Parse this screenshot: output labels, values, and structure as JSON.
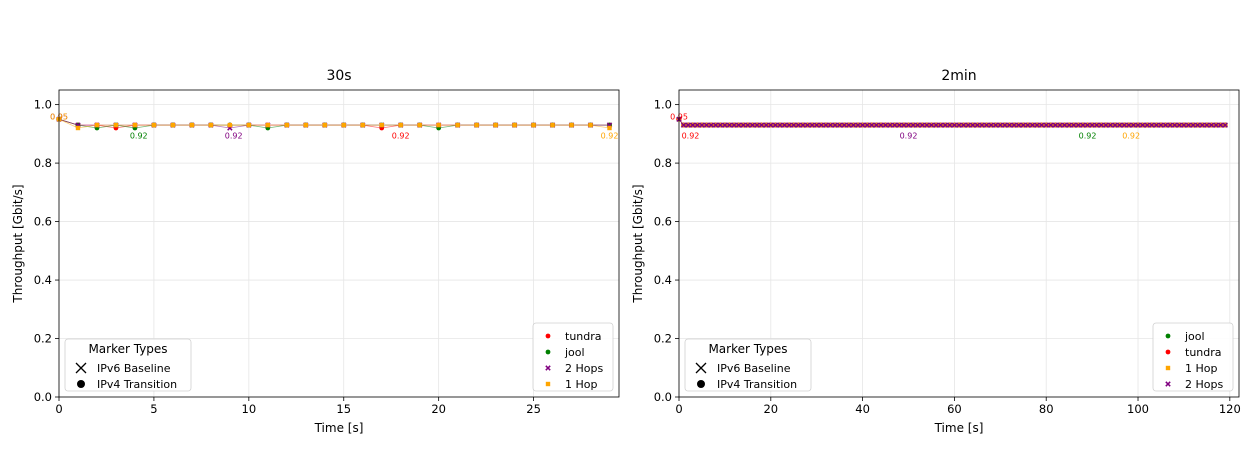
{
  "colors": {
    "tundra": "#ff0000",
    "jool": "#008000",
    "2 Hops": "#800080",
    "1 Hop": "#ffa500",
    "grid": "#e6e6e6"
  },
  "marker_legend": {
    "title": "Marker Types",
    "items": [
      {
        "label": "IPv6 Baseline",
        "marker": "x"
      },
      {
        "label": "IPv4 Transition",
        "marker": "circle"
      }
    ]
  },
  "chart_data": [
    {
      "type": "scatter",
      "title": "30s",
      "xlabel": "Time [s]",
      "ylabel": "Throughput [Gbit/s]",
      "xlim": [
        0,
        29.5
      ],
      "ylim": [
        0,
        1.05
      ],
      "xticks": [
        0,
        5,
        10,
        15,
        20,
        25
      ],
      "yticks": [
        0.0,
        0.2,
        0.4,
        0.6,
        0.8,
        1.0
      ],
      "grid": true,
      "legend_placement": "lower right",
      "series": [
        {
          "name": "tundra",
          "marker": "dot",
          "x": [
            0,
            1,
            2,
            3,
            4,
            5,
            6,
            7,
            8,
            9,
            10,
            11,
            12,
            13,
            14,
            15,
            16,
            17,
            18,
            19,
            20,
            21,
            22,
            23,
            24,
            25,
            26,
            27,
            28,
            29
          ],
          "y": [
            0.95,
            0.93,
            0.93,
            0.92,
            0.93,
            0.93,
            0.93,
            0.93,
            0.93,
            0.93,
            0.93,
            0.93,
            0.93,
            0.93,
            0.93,
            0.93,
            0.93,
            0.92,
            0.93,
            0.93,
            0.93,
            0.93,
            0.93,
            0.93,
            0.93,
            0.93,
            0.93,
            0.93,
            0.93,
            0.93
          ]
        },
        {
          "name": "jool",
          "marker": "dot",
          "x": [
            0,
            1,
            2,
            3,
            4,
            5,
            6,
            7,
            8,
            9,
            10,
            11,
            12,
            13,
            14,
            15,
            16,
            17,
            18,
            19,
            20,
            21,
            22,
            23,
            24,
            25,
            26,
            27,
            28,
            29
          ],
          "y": [
            0.95,
            0.93,
            0.92,
            0.93,
            0.92,
            0.93,
            0.93,
            0.93,
            0.93,
            0.93,
            0.93,
            0.92,
            0.93,
            0.93,
            0.93,
            0.93,
            0.93,
            0.93,
            0.93,
            0.93,
            0.92,
            0.93,
            0.93,
            0.93,
            0.93,
            0.93,
            0.93,
            0.93,
            0.93,
            0.93
          ]
        },
        {
          "name": "2 Hops",
          "marker": "x",
          "x": [
            0,
            1,
            2,
            3,
            4,
            5,
            6,
            7,
            8,
            9,
            10,
            11,
            12,
            13,
            14,
            15,
            16,
            17,
            18,
            19,
            20,
            21,
            22,
            23,
            24,
            25,
            26,
            27,
            28,
            29
          ],
          "y": [
            0.95,
            0.93,
            0.93,
            0.93,
            0.93,
            0.93,
            0.93,
            0.93,
            0.93,
            0.92,
            0.93,
            0.93,
            0.93,
            0.93,
            0.93,
            0.93,
            0.93,
            0.93,
            0.93,
            0.93,
            0.93,
            0.93,
            0.93,
            0.93,
            0.93,
            0.93,
            0.93,
            0.93,
            0.93,
            0.93
          ]
        },
        {
          "name": "1 Hop",
          "marker": "x",
          "x": [
            0,
            1,
            2,
            3,
            4,
            5,
            6,
            7,
            8,
            9,
            10,
            11,
            12,
            13,
            14,
            15,
            16,
            17,
            18,
            19,
            20,
            21,
            22,
            23,
            24,
            25,
            26,
            27,
            28,
            29
          ],
          "y": [
            0.95,
            0.92,
            0.93,
            0.93,
            0.93,
            0.93,
            0.93,
            0.93,
            0.93,
            0.93,
            0.93,
            0.93,
            0.93,
            0.93,
            0.93,
            0.93,
            0.93,
            0.93,
            0.93,
            0.93,
            0.93,
            0.93,
            0.93,
            0.93,
            0.93,
            0.93,
            0.93,
            0.93,
            0.93,
            0.92
          ]
        }
      ],
      "annotations": [
        {
          "x": 0,
          "y": 0.96,
          "text": "0.95",
          "series": "2 Hops"
        },
        {
          "x": 0,
          "y": 0.96,
          "text": "0.95",
          "series": "1 Hop"
        },
        {
          "x": 4.2,
          "y": 0.895,
          "text": "0.92",
          "series": "jool"
        },
        {
          "x": 9.2,
          "y": 0.895,
          "text": "0.92",
          "series": "2 Hops"
        },
        {
          "x": 18,
          "y": 0.895,
          "text": "0.92",
          "series": "tundra"
        },
        {
          "x": 29,
          "y": 0.895,
          "text": "0.92",
          "series": "1 Hop"
        }
      ]
    },
    {
      "type": "scatter",
      "title": "2min",
      "xlabel": "Time [s]",
      "ylabel": "Throughput [Gbit/s]",
      "xlim": [
        0,
        122
      ],
      "ylim": [
        0,
        1.05
      ],
      "xticks": [
        0,
        20,
        40,
        60,
        80,
        100,
        120
      ],
      "yticks": [
        0.0,
        0.2,
        0.4,
        0.6,
        0.8,
        1.0
      ],
      "grid": true,
      "legend_placement": "lower right",
      "series": [
        {
          "name": "jool",
          "marker": "dot",
          "x_start": 0,
          "x_end": 119,
          "y_first": 0.95,
          "y": 0.93
        },
        {
          "name": "tundra",
          "marker": "dot",
          "x_start": 0,
          "x_end": 119,
          "y_first": 0.95,
          "y": 0.93
        },
        {
          "name": "1 Hop",
          "marker": "x",
          "x_start": 0,
          "x_end": 119,
          "y_first": 0.95,
          "y": 0.93
        },
        {
          "name": "2 Hops",
          "marker": "x",
          "x_start": 0,
          "x_end": 119,
          "y_first": 0.95,
          "y": 0.93
        }
      ],
      "annotations": [
        {
          "x": 0,
          "y": 0.96,
          "text": "0.95",
          "series": "tundra"
        },
        {
          "x": 2.5,
          "y": 0.895,
          "text": "0.92",
          "series": "tundra"
        },
        {
          "x": 50,
          "y": 0.895,
          "text": "0.92",
          "series": "2 Hops"
        },
        {
          "x": 89,
          "y": 0.895,
          "text": "0.92",
          "series": "jool"
        },
        {
          "x": 98.5,
          "y": 0.895,
          "text": "0.92",
          "series": "1 Hop"
        }
      ]
    }
  ]
}
